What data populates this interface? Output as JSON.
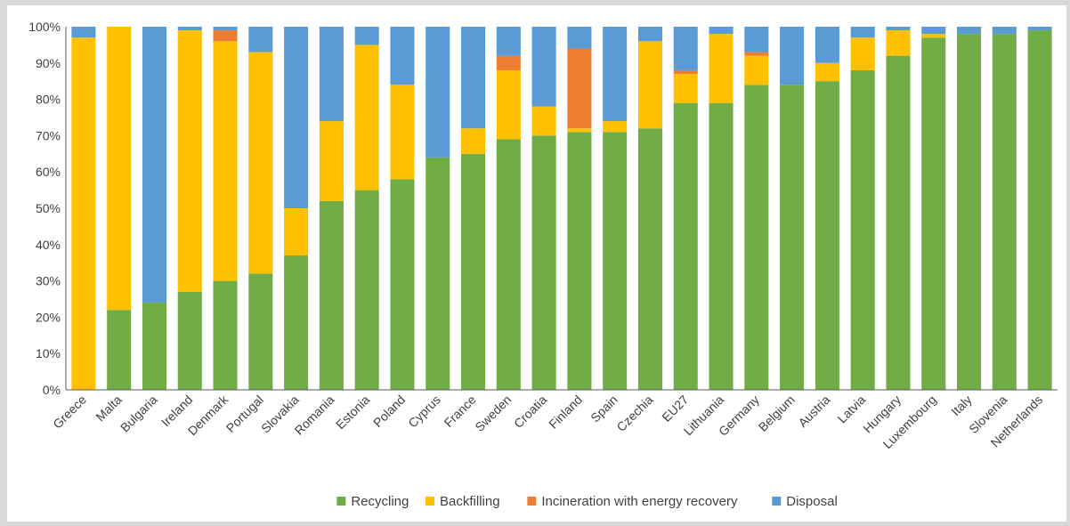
{
  "chart_data": {
    "type": "bar",
    "stacked": true,
    "categories": [
      "Greece",
      "Malta",
      "Bulgaria",
      "Ireland",
      "Denmark",
      "Portugal",
      "Slovakia",
      "Romania",
      "Estonia",
      "Poland",
      "Cyprus",
      "France",
      "Sweden",
      "Croatia",
      "Finland",
      "Spain",
      "Czechia",
      "EU27",
      "Lithuania",
      "Germany",
      "Belgium",
      "Austria",
      "Latvia",
      "Hungary",
      "Luxembourg",
      "Italy",
      "Slovenia",
      "Netherlands"
    ],
    "series": [
      {
        "name": "Recycling",
        "color": "#70ad47",
        "values": [
          0,
          22,
          24,
          27,
          30,
          32,
          37,
          52,
          55,
          58,
          64,
          65,
          69,
          70,
          71,
          71,
          72,
          79,
          79,
          84,
          84,
          85,
          88,
          92,
          97,
          98,
          98,
          99
        ]
      },
      {
        "name": "Backfilling",
        "color": "#ffc000",
        "values": [
          97,
          78,
          0,
          72,
          66,
          61,
          13,
          22,
          40,
          26,
          0,
          7,
          19,
          8,
          1,
          3,
          24,
          8,
          19,
          8,
          0,
          5,
          9,
          7,
          1,
          0,
          0,
          0
        ]
      },
      {
        "name": "Incineration with energy recovery",
        "color": "#ed7d31",
        "values": [
          0,
          0,
          0,
          0,
          3,
          0,
          0,
          0,
          0,
          0,
          0,
          0,
          4,
          0,
          22,
          0,
          0,
          1,
          0,
          1,
          0,
          0,
          0,
          0,
          0,
          0,
          0,
          0
        ]
      },
      {
        "name": "Disposal",
        "color": "#5b9bd5",
        "values": [
          3,
          0,
          76,
          1,
          1,
          7,
          50,
          26,
          5,
          16,
          36,
          28,
          8,
          22,
          6,
          26,
          4,
          12,
          2,
          7,
          16,
          10,
          3,
          1,
          2,
          2,
          2,
          1
        ]
      }
    ],
    "ylim": [
      0,
      100
    ],
    "yticks": [
      "0%",
      "10%",
      "20%",
      "30%",
      "40%",
      "50%",
      "60%",
      "70%",
      "80%",
      "90%",
      "100%"
    ],
    "grid": false,
    "legend_position": "bottom"
  }
}
